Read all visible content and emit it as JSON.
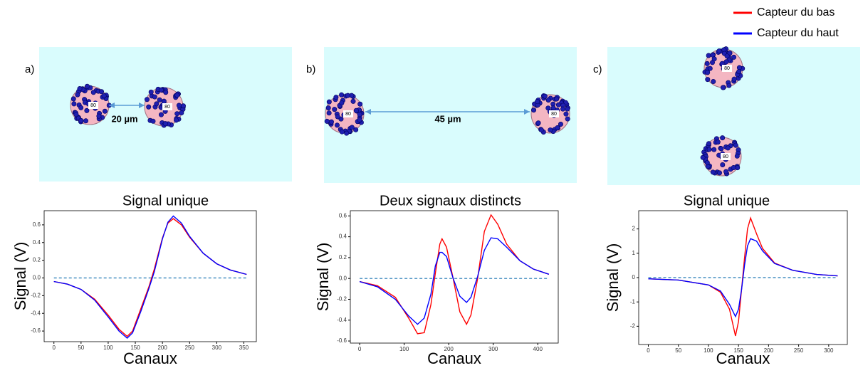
{
  "legend": [
    {
      "name": "Capteur du bas",
      "color": "#ff0000"
    },
    {
      "name": "Capteur du haut",
      "color": "#0000ff"
    }
  ],
  "panels": [
    {
      "label": "a)",
      "distance": "20 µm",
      "disks": [
        "80",
        "80"
      ],
      "caption": "Signal unique"
    },
    {
      "label": "b)",
      "distance": "45 µm",
      "disks": [
        "80",
        "80"
      ],
      "caption": "Deux signaux distincts"
    },
    {
      "label": "c)",
      "disks": [
        "80",
        "80"
      ],
      "caption": "Signal unique"
    }
  ],
  "chart_data": [
    {
      "type": "line",
      "ylabel": "Signal (V)",
      "xlabel": "Canaux",
      "x": [
        0,
        25,
        50,
        75,
        100,
        120,
        135,
        145,
        160,
        175,
        185,
        200,
        210,
        220,
        235,
        250,
        275,
        300,
        325,
        355
      ],
      "series": [
        {
          "color": "#ff0000",
          "values": [
            -0.04,
            -0.07,
            -0.13,
            -0.24,
            -0.42,
            -0.58,
            -0.66,
            -0.6,
            -0.35,
            -0.1,
            0.1,
            0.45,
            0.62,
            0.67,
            0.6,
            0.46,
            0.28,
            0.16,
            0.09,
            0.04
          ]
        },
        {
          "color": "#0000ff",
          "values": [
            -0.04,
            -0.07,
            -0.13,
            -0.25,
            -0.44,
            -0.6,
            -0.68,
            -0.62,
            -0.38,
            -0.12,
            0.07,
            0.44,
            0.63,
            0.7,
            0.62,
            0.47,
            0.28,
            0.16,
            0.09,
            0.04
          ]
        }
      ],
      "reference_y": 0,
      "reference_color": "#1f77b4",
      "xlim": [
        -18,
        373
      ],
      "xticks": [
        0,
        50,
        100,
        150,
        200,
        250,
        300,
        350
      ],
      "ylim": [
        -0.72,
        0.76
      ],
      "yticks": [
        -0.6,
        -0.4,
        -0.2,
        {
          "value": 0,
          "label": "0.0"
        },
        0.2,
        0.4,
        0.6
      ]
    },
    {
      "type": "line",
      "ylabel": "Signal (V)",
      "xlabel": "Canaux",
      "x": [
        0,
        40,
        80,
        110,
        130,
        145,
        160,
        170,
        180,
        185,
        195,
        210,
        225,
        240,
        250,
        265,
        280,
        295,
        310,
        330,
        360,
        390,
        425
      ],
      "series": [
        {
          "color": "#ff0000",
          "values": [
            -0.03,
            -0.07,
            -0.18,
            -0.38,
            -0.53,
            -0.52,
            -0.25,
            0.05,
            0.33,
            0.38,
            0.3,
            0.0,
            -0.32,
            -0.44,
            -0.35,
            0.0,
            0.45,
            0.61,
            0.52,
            0.33,
            0.17,
            0.09,
            0.04
          ]
        },
        {
          "color": "#0000ff",
          "values": [
            -0.03,
            -0.08,
            -0.2,
            -0.36,
            -0.44,
            -0.38,
            -0.15,
            0.12,
            0.25,
            0.25,
            0.21,
            0.0,
            -0.17,
            -0.23,
            -0.18,
            0.02,
            0.27,
            0.39,
            0.38,
            0.3,
            0.17,
            0.09,
            0.04
          ]
        }
      ],
      "reference_y": 0,
      "reference_color": "#1f77b4",
      "xlim": [
        -21,
        446
      ],
      "xticks": [
        0,
        100,
        200,
        300,
        400
      ],
      "ylim": [
        -0.62,
        0.65
      ],
      "yticks": [
        -0.6,
        -0.4,
        -0.2,
        {
          "value": 0,
          "label": "0.0"
        },
        0.2,
        0.4,
        0.6
      ]
    },
    {
      "type": "line",
      "ylabel": "Signal (V)",
      "xlabel": "Canaux",
      "x": [
        0,
        50,
        100,
        120,
        135,
        145,
        150,
        155,
        160,
        165,
        170,
        180,
        190,
        210,
        240,
        280,
        315
      ],
      "series": [
        {
          "color": "#ff0000",
          "values": [
            -0.05,
            -0.1,
            -0.3,
            -0.6,
            -1.3,
            -2.4,
            -1.8,
            -0.5,
            0.8,
            2.0,
            2.45,
            1.8,
            1.2,
            0.6,
            0.3,
            0.13,
            0.07
          ]
        },
        {
          "color": "#0000ff",
          "values": [
            -0.05,
            -0.1,
            -0.3,
            -0.55,
            -1.1,
            -1.6,
            -1.3,
            -0.5,
            0.5,
            1.3,
            1.6,
            1.5,
            1.1,
            0.58,
            0.3,
            0.13,
            0.07
          ]
        }
      ],
      "reference_y": 0,
      "reference_color": "#1f77b4",
      "xlim": [
        -16,
        331
      ],
      "xticks": [
        0,
        50,
        100,
        150,
        200,
        250,
        300
      ],
      "ylim": [
        -2.75,
        2.75
      ],
      "yticks": [
        -2,
        -1,
        0,
        1,
        2
      ]
    }
  ]
}
